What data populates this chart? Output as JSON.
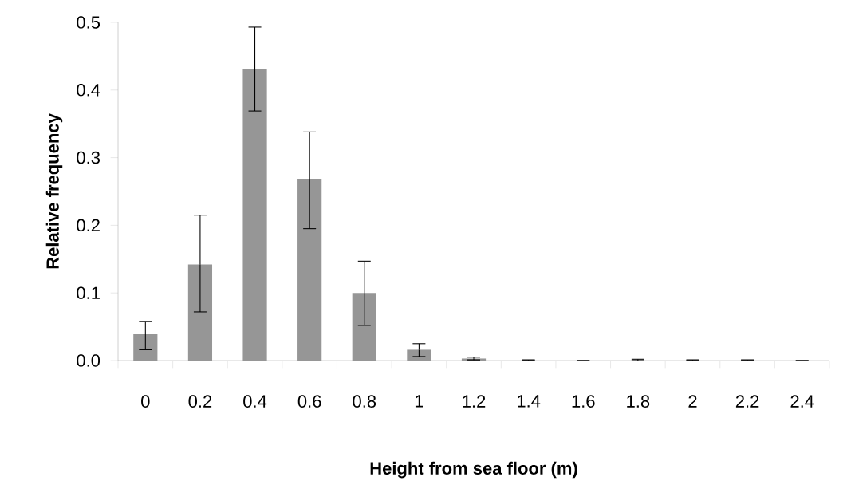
{
  "chart_data": {
    "type": "bar",
    "xlabel": "Height from sea floor (m)",
    "ylabel": "Relative frequency",
    "categories": [
      "0",
      "0.2",
      "0.4",
      "0.6",
      "0.8",
      "1",
      "1.2",
      "1.4",
      "1.6",
      "1.8",
      "2",
      "2.2",
      "2.4"
    ],
    "values": [
      0.039,
      0.142,
      0.431,
      0.269,
      0.1,
      0.016,
      0.003,
      0,
      0,
      0,
      0,
      0,
      0
    ],
    "errors": [
      [
        0.016,
        0.058
      ],
      [
        0.072,
        0.215
      ],
      [
        0.369,
        0.493
      ],
      [
        0.195,
        0.338
      ],
      [
        0.052,
        0.147
      ],
      [
        0.006,
        0.025
      ],
      [
        0.001,
        0.005
      ],
      [
        0,
        0.001
      ],
      null,
      [
        0,
        0.002
      ],
      [
        0,
        0.001
      ],
      [
        0,
        0.001
      ],
      null
    ],
    "color": "#969696",
    "ylim": [
      0,
      0.5
    ],
    "yticks": [
      {
        "value": 0,
        "label": "0.0"
      },
      {
        "value": 0.1,
        "label": "0.1"
      },
      {
        "value": 0.2,
        "label": "0.2"
      },
      {
        "value": 0.3,
        "label": "0.3"
      },
      {
        "value": 0.4,
        "label": "0.4"
      },
      {
        "value": 0.5,
        "label": "0.5"
      }
    ],
    "grid": false
  }
}
